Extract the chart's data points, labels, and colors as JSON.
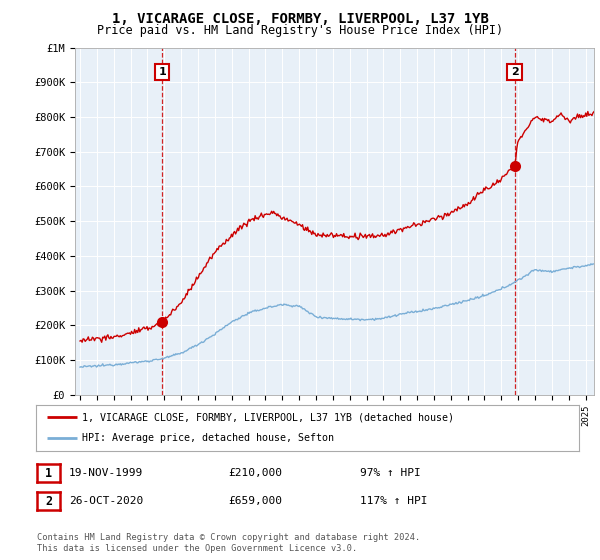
{
  "title": "1, VICARAGE CLOSE, FORMBY, LIVERPOOL, L37 1YB",
  "subtitle": "Price paid vs. HM Land Registry's House Price Index (HPI)",
  "legend_line1": "1, VICARAGE CLOSE, FORMBY, LIVERPOOL, L37 1YB (detached house)",
  "legend_line2": "HPI: Average price, detached house, Sefton",
  "sale1_date": "19-NOV-1999",
  "sale1_price": "£210,000",
  "sale1_hpi": "97% ↑ HPI",
  "sale2_date": "26-OCT-2020",
  "sale2_price": "£659,000",
  "sale2_hpi": "117% ↑ HPI",
  "footer": "Contains HM Land Registry data © Crown copyright and database right 2024.\nThis data is licensed under the Open Government Licence v3.0.",
  "ylim": [
    0,
    1000000
  ],
  "yticks": [
    0,
    100000,
    200000,
    300000,
    400000,
    500000,
    600000,
    700000,
    800000,
    900000,
    1000000
  ],
  "ytick_labels": [
    "£0",
    "£100K",
    "£200K",
    "£300K",
    "£400K",
    "£500K",
    "£600K",
    "£700K",
    "£800K",
    "£900K",
    "£1M"
  ],
  "xlim_start": 1994.7,
  "xlim_end": 2025.5,
  "red_color": "#cc0000",
  "blue_color": "#7aaed6",
  "chart_bg": "#e8f0f8",
  "background_color": "#ffffff",
  "grid_color": "#ffffff",
  "sale1_x": 1999.88,
  "sale1_y": 210000,
  "sale2_x": 2020.79,
  "sale2_y": 659000
}
